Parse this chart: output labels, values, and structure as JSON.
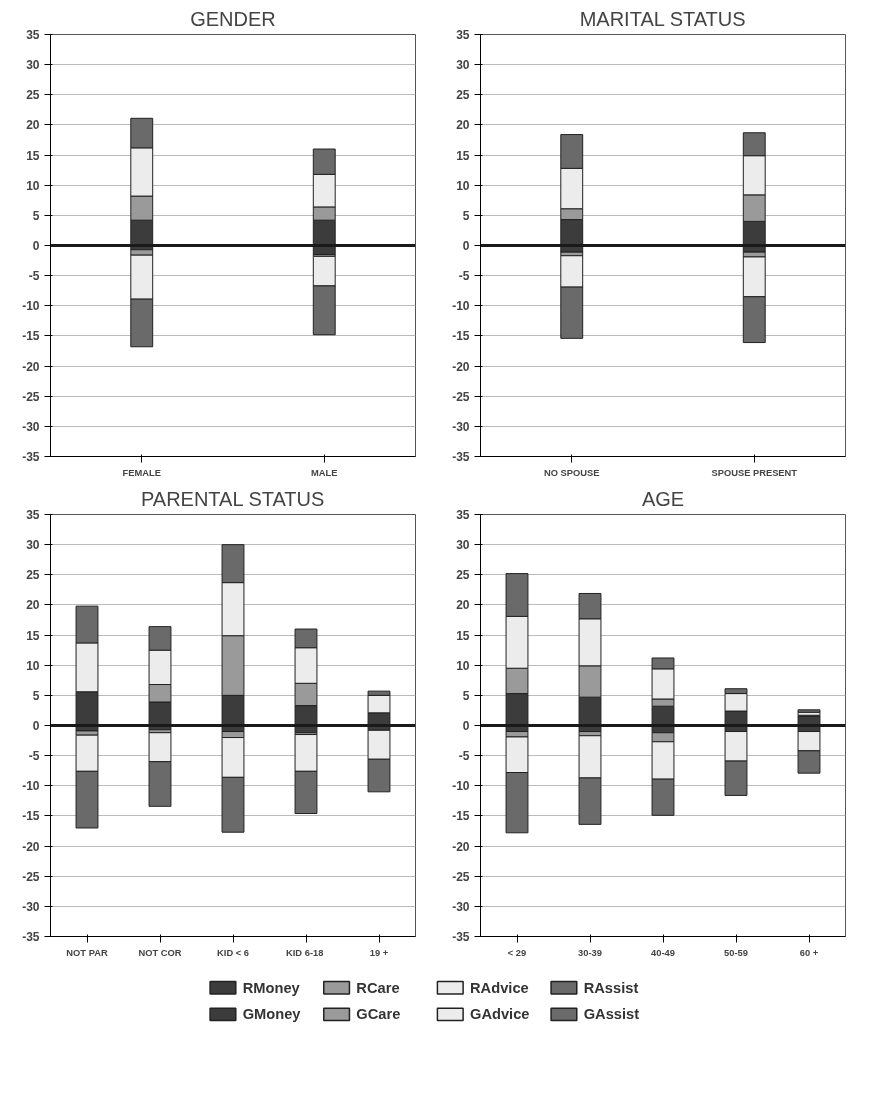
{
  "chart_data": [
    {
      "type": "bar",
      "title": "GENDER",
      "categories": [
        "FEMALE",
        "MALE"
      ],
      "stacked": true,
      "legend": "bottom",
      "ylim": [
        -35,
        35
      ],
      "yticks": [
        -35,
        -30,
        -25,
        -20,
        -15,
        -10,
        -5,
        0,
        5,
        10,
        15,
        20,
        25,
        30,
        35
      ],
      "grid": "y",
      "ref_lines": [
        {
          "axis": "y",
          "value": 0,
          "color": "#1a1a1a"
        }
      ],
      "series": [
        {
          "name": "RMoney",
          "color": "#3c3c3c",
          "values": [
            4.2,
            4.2
          ]
        },
        {
          "name": "RCare",
          "color": "#9a9a9a",
          "values": [
            4.0,
            2.2
          ]
        },
        {
          "name": "RAdvice",
          "color": "#ececec",
          "values": [
            8.0,
            5.4
          ]
        },
        {
          "name": "RAssist",
          "color": "#6a6a6a",
          "values": [
            4.9,
            4.2
          ]
        },
        {
          "name": "GMoney",
          "color": "#3c3c3c",
          "values": [
            -0.7,
            -1.5
          ]
        },
        {
          "name": "GCare",
          "color": "#9a9a9a",
          "values": [
            -0.9,
            -0.3
          ]
        },
        {
          "name": "GAdvice",
          "color": "#ececec",
          "values": [
            -7.3,
            -4.9
          ]
        },
        {
          "name": "GAssist",
          "color": "#6a6a6a",
          "values": [
            -7.9,
            -8.1
          ]
        }
      ]
    },
    {
      "type": "bar",
      "title": "MARITAL STATUS",
      "categories": [
        "NO SPOUSE",
        "SPOUSE PRESENT"
      ],
      "stacked": true,
      "ylim": [
        -35,
        35
      ],
      "yticks": [
        -35,
        -30,
        -25,
        -20,
        -15,
        -10,
        -5,
        0,
        5,
        10,
        15,
        20,
        25,
        30,
        35
      ],
      "grid": "y",
      "ref_lines": [
        {
          "axis": "y",
          "value": 0,
          "color": "#1a1a1a"
        }
      ],
      "series": [
        {
          "color": "#3c3c3c",
          "values": [
            4.3,
            4.0
          ]
        },
        {
          "color": "#9a9a9a",
          "values": [
            1.8,
            4.4
          ]
        },
        {
          "color": "#ececec",
          "values": [
            6.7,
            6.5
          ]
        },
        {
          "color": "#6a6a6a",
          "values": [
            5.6,
            3.8
          ]
        },
        {
          "color": "#3c3c3c",
          "values": [
            -1.1,
            -1.1
          ]
        },
        {
          "color": "#9a9a9a",
          "values": [
            -0.6,
            -0.8
          ]
        },
        {
          "color": "#ececec",
          "values": [
            -5.2,
            -6.6
          ]
        },
        {
          "color": "#6a6a6a",
          "values": [
            -8.5,
            -7.6
          ]
        }
      ]
    },
    {
      "type": "bar",
      "title": "PARENTAL STATUS",
      "categories": [
        "NOT PAR",
        "NOT COR",
        "KID < 6",
        "KID  6-18",
        "19 +"
      ],
      "stacked": true,
      "ylim": [
        -35,
        35
      ],
      "yticks": [
        -35,
        -30,
        -25,
        -20,
        -15,
        -10,
        -5,
        0,
        5,
        10,
        15,
        20,
        25,
        30,
        35
      ],
      "grid": "y",
      "ref_lines": [
        {
          "axis": "y",
          "value": 0,
          "color": "#1a1a1a"
        }
      ],
      "series": [
        {
          "color": "#3c3c3c",
          "values": [
            5.6,
            3.9,
            5.0,
            3.3,
            2.1
          ]
        },
        {
          "color": "#9a9a9a",
          "values": [
            null,
            2.9,
            9.9,
            3.7,
            null
          ]
        },
        {
          "color": "#ececec",
          "values": [
            8.1,
            5.7,
            8.8,
            5.9,
            2.9
          ]
        },
        {
          "color": "#6a6a6a",
          "values": [
            6.1,
            3.9,
            6.3,
            3.1,
            0.7
          ]
        },
        {
          "color": "#3c3c3c",
          "values": [
            -0.9,
            -0.7,
            -1.0,
            -1.2,
            -0.8
          ]
        },
        {
          "color": "#9a9a9a",
          "values": [
            -0.7,
            -0.5,
            -1.0,
            -0.3,
            null
          ]
        },
        {
          "color": "#ececec",
          "values": [
            -6.0,
            -4.8,
            -6.6,
            -6.1,
            -4.8
          ]
        },
        {
          "color": "#6a6a6a",
          "values": [
            -9.4,
            -7.4,
            -9.1,
            -7.0,
            -5.4
          ]
        }
      ]
    },
    {
      "type": "bar",
      "title": "AGE",
      "categories": [
        "< 29",
        "30-39",
        "40-49",
        "50-59",
        "60 +"
      ],
      "stacked": true,
      "ylim": [
        -35,
        35
      ],
      "yticks": [
        -35,
        -30,
        -25,
        -20,
        -15,
        -10,
        -5,
        0,
        5,
        10,
        15,
        20,
        25,
        30,
        35
      ],
      "grid": "y",
      "ref_lines": [
        {
          "axis": "y",
          "value": 0,
          "color": "#1a1a1a"
        }
      ],
      "series": [
        {
          "color": "#3c3c3c",
          "values": [
            5.3,
            4.7,
            3.2,
            2.4,
            1.5
          ]
        },
        {
          "color": "#9a9a9a",
          "values": [
            4.2,
            5.2,
            1.2,
            null,
            0.2
          ]
        },
        {
          "color": "#ececec",
          "values": [
            8.6,
            7.8,
            5.0,
            2.9,
            0.5
          ]
        },
        {
          "color": "#6a6a6a",
          "values": [
            7.1,
            4.2,
            1.8,
            0.8,
            0.4
          ]
        },
        {
          "color": "#3c3c3c",
          "values": [
            -1.0,
            -1.0,
            -1.2,
            -1.0,
            -1.0
          ]
        },
        {
          "color": "#9a9a9a",
          "values": [
            -0.9,
            -0.7,
            -1.5,
            null,
            null
          ]
        },
        {
          "color": "#ececec",
          "values": [
            -5.9,
            -7.0,
            -6.2,
            -4.9,
            -3.2
          ]
        },
        {
          "color": "#6a6a6a",
          "values": [
            -10.0,
            -7.7,
            -6.0,
            -5.7,
            -3.7
          ]
        }
      ]
    }
  ]
}
